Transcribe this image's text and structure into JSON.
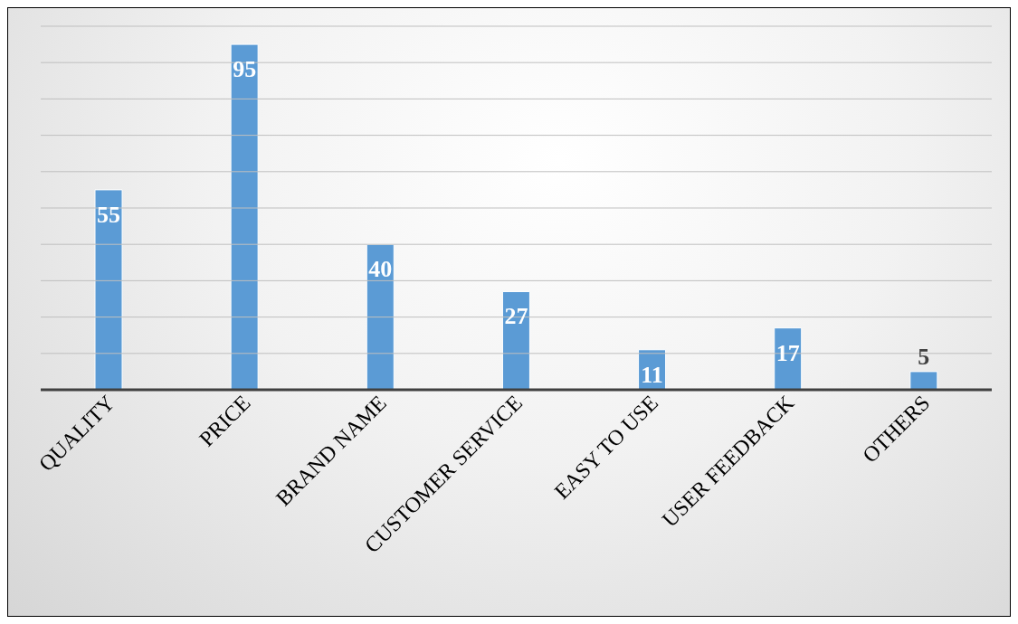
{
  "chart_data": {
    "type": "bar",
    "categories": [
      "QUALITY",
      "PRICE",
      "BRAND NAME",
      "CUSTOMER SERVICE",
      "EASY TO USE",
      "USER FEEDBACK",
      "OTHERS"
    ],
    "values": [
      55,
      95,
      40,
      27,
      11,
      17,
      5
    ],
    "color": "#5b9bd5",
    "ylim": [
      0,
      100
    ],
    "yticks": [
      {
        "value": 0,
        "label": null
      },
      {
        "value": 10,
        "label": null
      },
      {
        "value": 20,
        "label": null
      },
      {
        "value": 30,
        "label": null
      },
      {
        "value": 40,
        "label": null
      },
      {
        "value": 50,
        "label": null
      },
      {
        "value": 60,
        "label": null
      },
      {
        "value": 70,
        "label": null
      },
      {
        "value": 80,
        "label": null
      },
      {
        "value": 90,
        "label": null
      },
      {
        "value": 100,
        "label": null
      }
    ],
    "grid": "y",
    "tick_labels": "x",
    "data_labels": true,
    "legend": false
  }
}
